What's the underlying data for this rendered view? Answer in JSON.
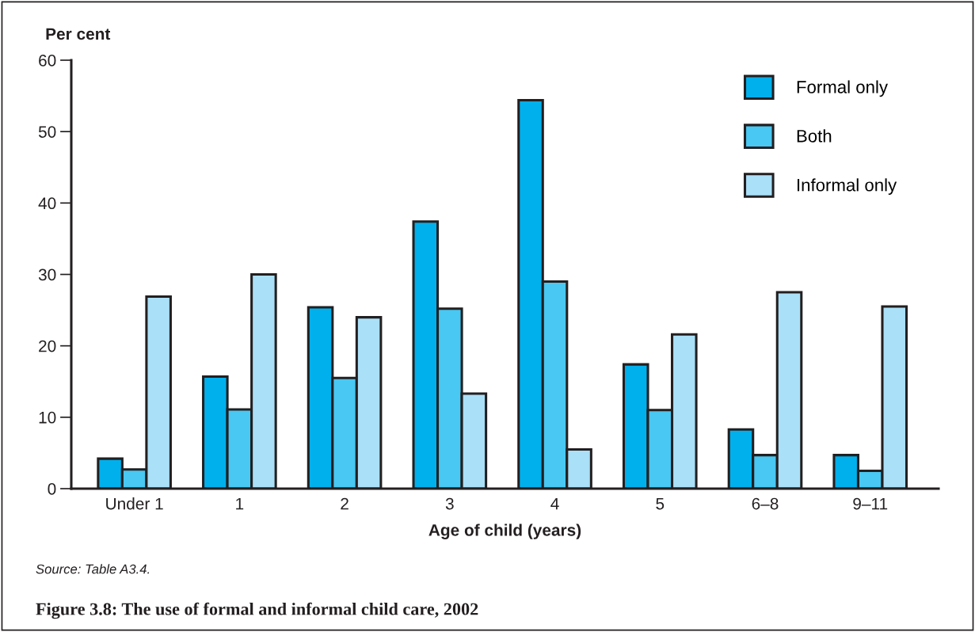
{
  "chart_data": {
    "type": "bar",
    "title": "Figure 3.8: The use of formal and informal child care, 2002",
    "xlabel": "Age of child (years)",
    "ylabel": "Per cent",
    "categories": [
      "Under 1",
      "1",
      "2",
      "3",
      "4",
      "5",
      "6–8",
      "9–11"
    ],
    "series": [
      {
        "name": "Formal only",
        "color": "#00b0ec",
        "values": [
          4.2,
          15.7,
          25.4,
          37.4,
          54.4,
          17.4,
          8.3,
          4.7
        ]
      },
      {
        "name": "Both",
        "color": "#48c8f2",
        "values": [
          2.7,
          11.1,
          15.5,
          25.2,
          29.0,
          11.0,
          4.7,
          2.5
        ]
      },
      {
        "name": "Informal only",
        "color": "#aae0f8",
        "values": [
          26.9,
          30.0,
          24.0,
          13.3,
          5.5,
          21.6,
          27.5,
          25.5
        ]
      }
    ],
    "ylim": [
      0,
      60
    ],
    "yticks": [
      0,
      10,
      20,
      30,
      40,
      50,
      60
    ],
    "grid": false,
    "legend": "top right",
    "annotations": [
      "Source: Table A3.4."
    ]
  }
}
